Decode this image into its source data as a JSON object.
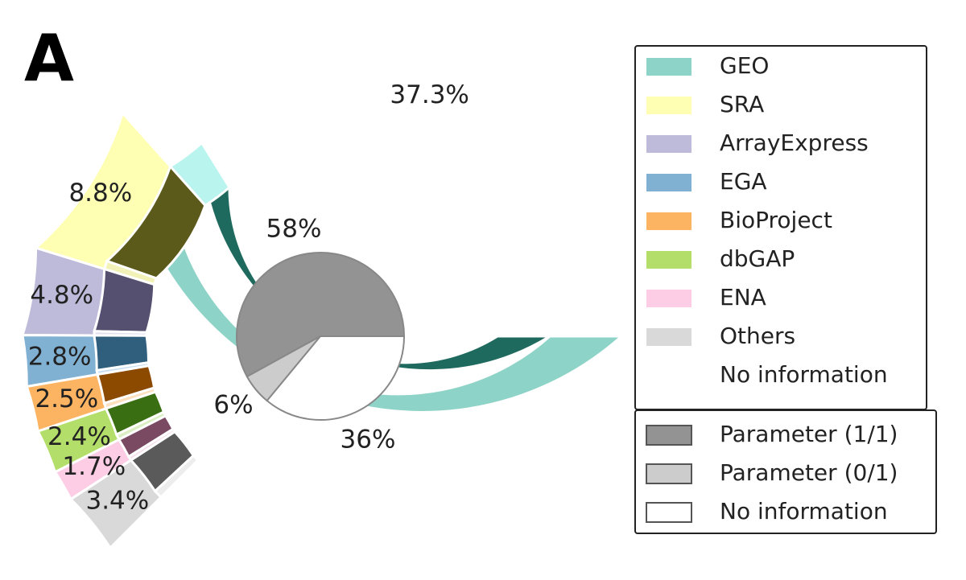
{
  "panel_label": "A",
  "chart_data": [
    {
      "type": "pie",
      "chart": "nested-half-donut",
      "outer_ring": {
        "slices": [
          {
            "name": "GEO",
            "value": 37.3,
            "label": "37.3%",
            "color": "#8dd3c7"
          },
          {
            "name": "SRA",
            "value": 8.8,
            "label": "8.8%",
            "color": "#ffffb3"
          },
          {
            "name": "ArrayExpress",
            "value": 4.8,
            "label": "4.8%",
            "color": "#bebada"
          },
          {
            "name": "EGA",
            "value": 2.8,
            "label": "2.8%",
            "color": "#80b1d3"
          },
          {
            "name": "BioProject",
            "value": 2.5,
            "label": "2.5%",
            "color": "#fdb462"
          },
          {
            "name": "dbGAP",
            "value": 2.4,
            "label": "2.4%",
            "color": "#b3de69"
          },
          {
            "name": "ENA",
            "value": 1.7,
            "label": "1.7%",
            "color": "#fccde5"
          },
          {
            "name": "Others",
            "value": 3.4,
            "label": "3.4%",
            "color": "#d9d9d9"
          }
        ]
      },
      "inner_ring": {
        "note": "per repository split: Parameter (1/1) dark shade, Parameter (0/1) light shade",
        "segments": [
          {
            "repository": "GEO",
            "param_1_1": 34.5,
            "param_0_1": 2.8,
            "dark": "#1f6a5e",
            "light": "#b9f4ef"
          },
          {
            "repository": "SRA",
            "param_1_1": 8.2,
            "param_0_1": 0.6,
            "dark": "#5c5a1a",
            "light": "#f2f2b8"
          },
          {
            "repository": "ArrayExpress",
            "param_1_1": 4.5,
            "param_0_1": 0.3,
            "dark": "#555070",
            "light": "#e2e0ef"
          },
          {
            "repository": "EGA",
            "param_1_1": 2.5,
            "param_0_1": 0.3,
            "dark": "#2f5f7c",
            "light": "#c9def0"
          },
          {
            "repository": "BioProject",
            "param_1_1": 2.1,
            "param_0_1": 0.4,
            "dark": "#8b4a00",
            "light": "#fde0bf"
          },
          {
            "repository": "dbGAP",
            "param_1_1": 2.0,
            "param_0_1": 0.4,
            "dark": "#3a6e12",
            "light": "#dcefc4"
          },
          {
            "repository": "ENA",
            "param_1_1": 1.4,
            "param_0_1": 0.3,
            "dark": "#7a4a63",
            "light": "#f6e1ec"
          },
          {
            "repository": "Others",
            "param_1_1": 2.8,
            "param_0_1": 0.6,
            "dark": "#5a5a5a",
            "light": "#ededed"
          }
        ]
      }
    },
    {
      "type": "pie",
      "chart": "center-pie",
      "slices": [
        {
          "name": "Parameter (1/1)",
          "value": 58,
          "label": "58%",
          "color": "#939393"
        },
        {
          "name": "Parameter (0/1)",
          "value": 6,
          "label": "6%",
          "color": "#cccccc"
        },
        {
          "name": "No information",
          "value": 36,
          "label": "36%",
          "color": "#ffffff"
        }
      ]
    }
  ],
  "legend_repositories": [
    {
      "label": "GEO",
      "color": "#8dd3c7"
    },
    {
      "label": "SRA",
      "color": "#ffffb3"
    },
    {
      "label": "ArrayExpress",
      "color": "#bebada"
    },
    {
      "label": "EGA",
      "color": "#80b1d3"
    },
    {
      "label": "BioProject",
      "color": "#fdb462"
    },
    {
      "label": "dbGAP",
      "color": "#b3de69"
    },
    {
      "label": "ENA",
      "color": "#fccde5"
    },
    {
      "label": "Others",
      "color": "#d9d9d9"
    },
    {
      "label": "No information",
      "color": "#ffffff"
    }
  ],
  "legend_parameters": [
    {
      "label": "Parameter (1/1)",
      "color": "#939393"
    },
    {
      "label": "Parameter (0/1)",
      "color": "#cccccc"
    },
    {
      "label": "No information",
      "color": "#ffffff"
    }
  ]
}
